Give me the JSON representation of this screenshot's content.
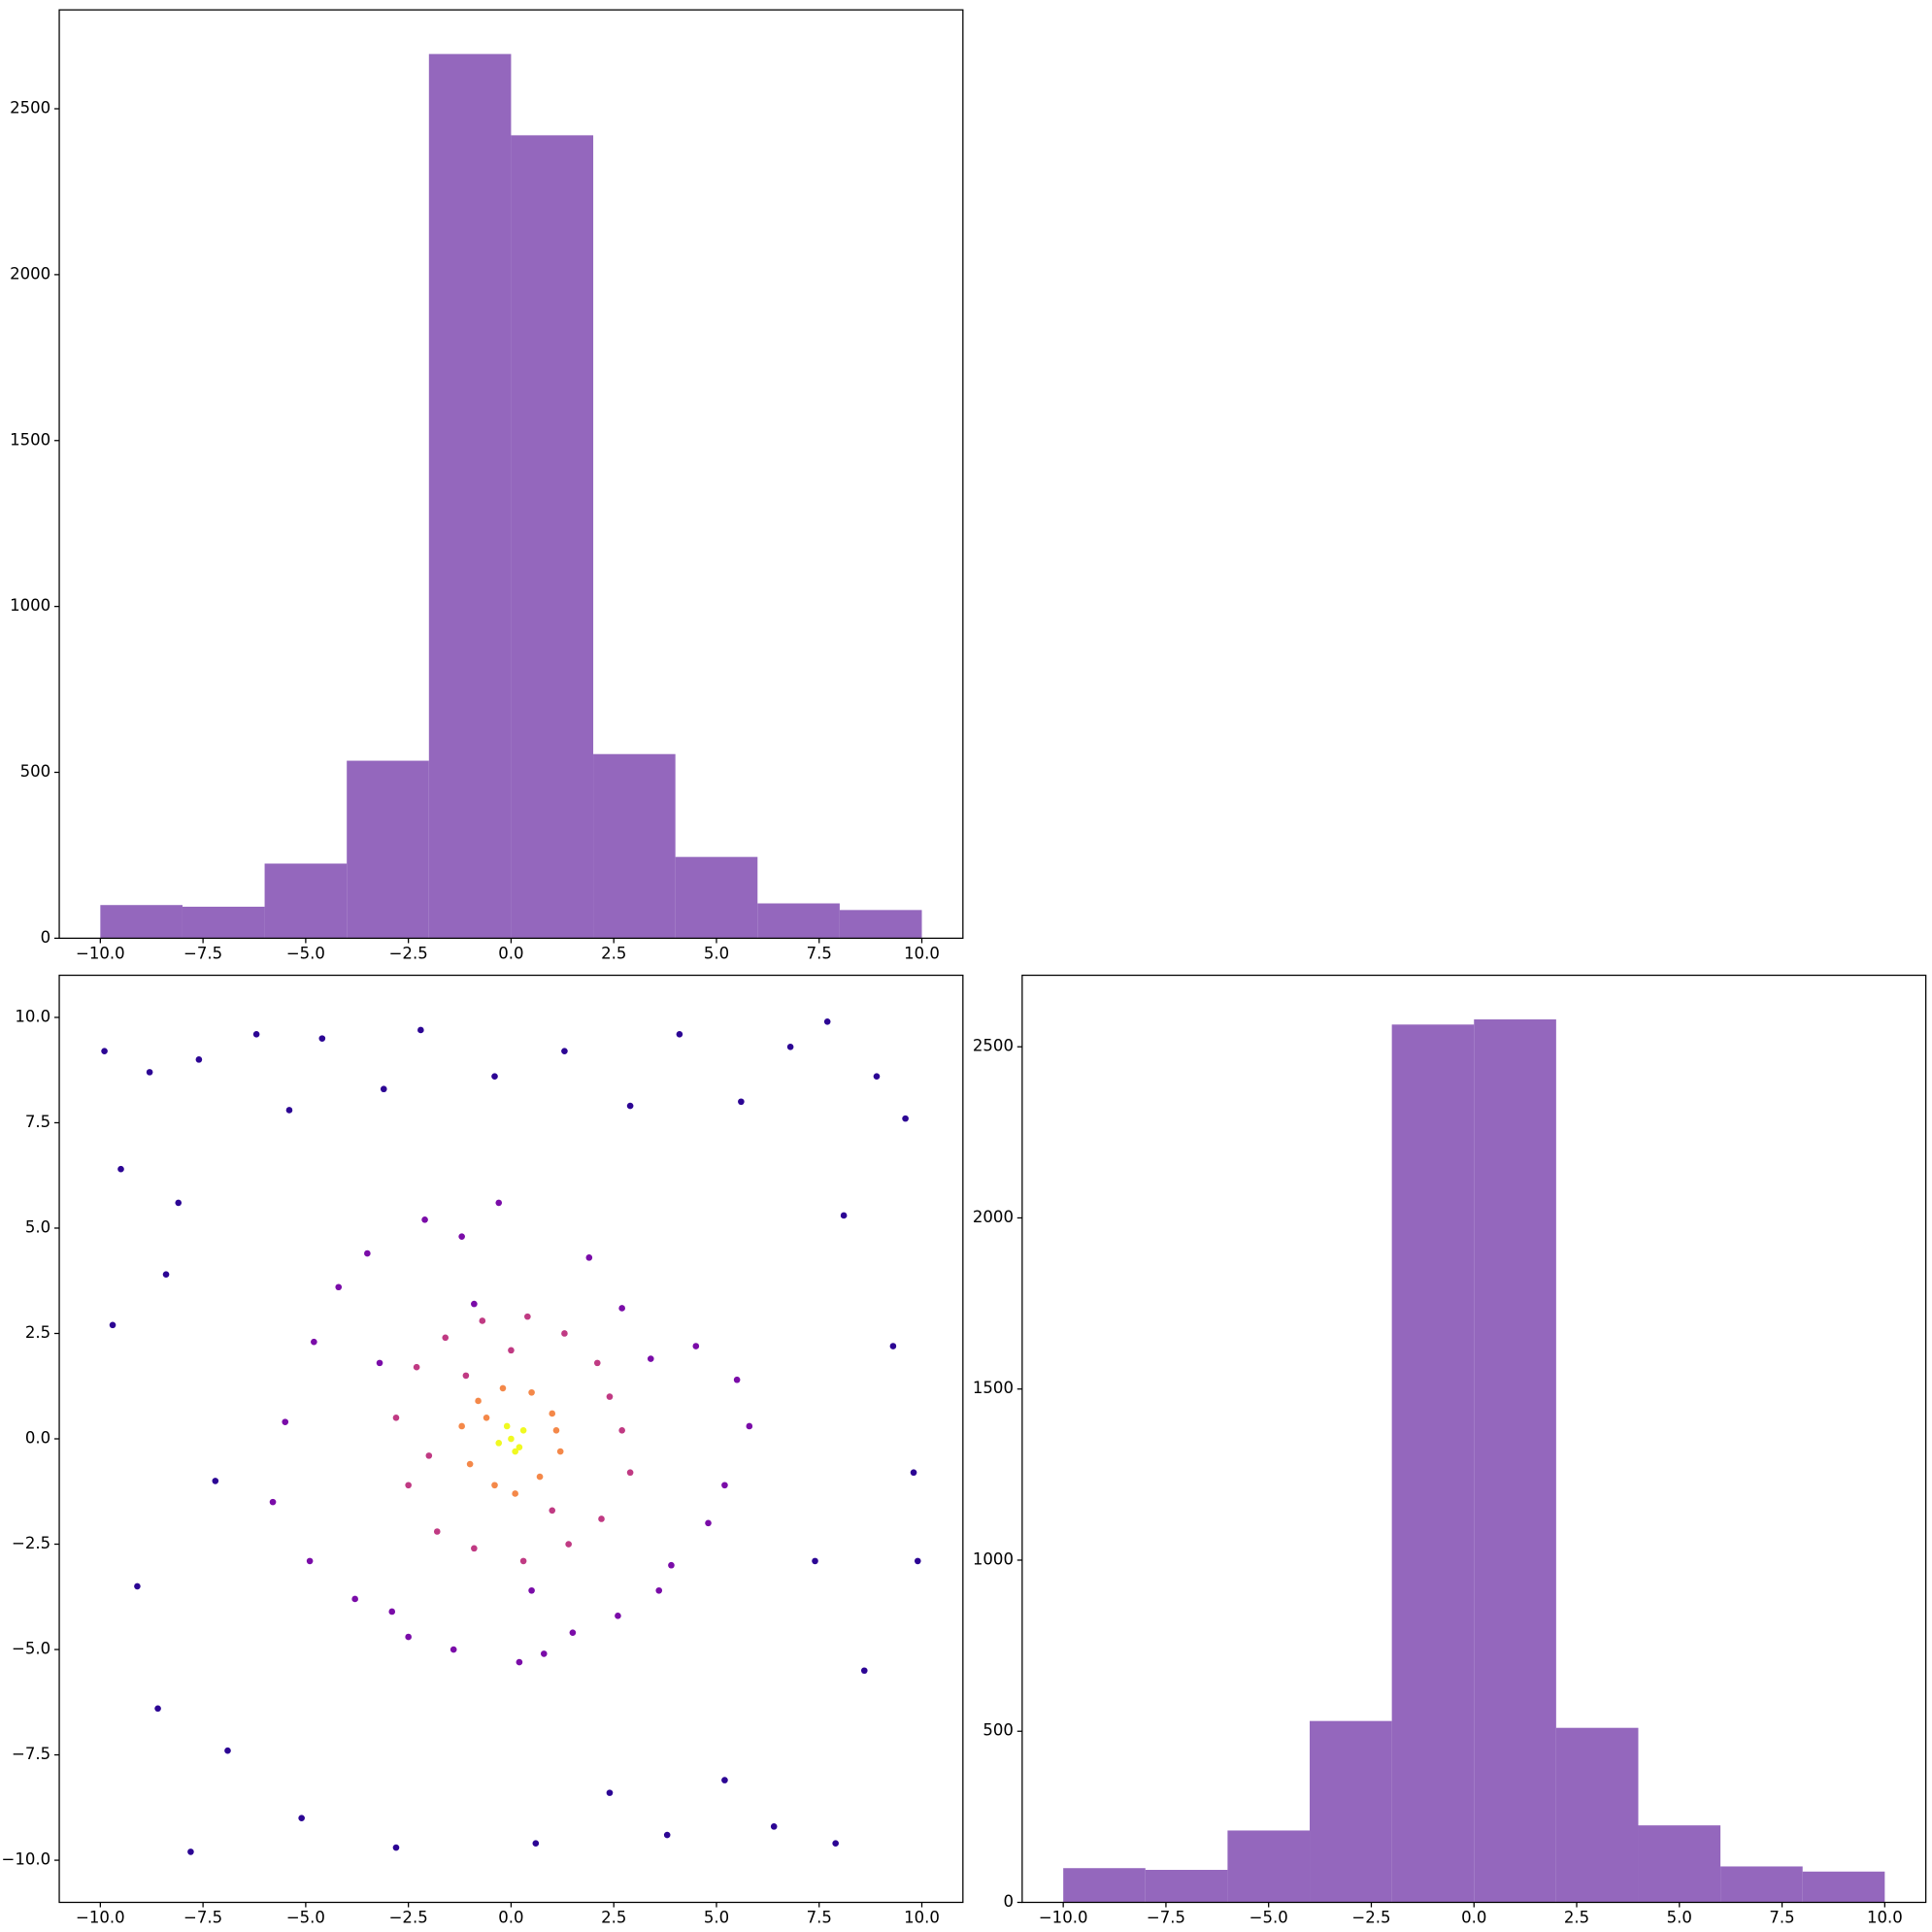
{
  "chart_data": [
    {
      "type": "histogram",
      "color": "#9467bd",
      "bins": [
        -10,
        -8,
        -6,
        -4,
        -2,
        0,
        2,
        4,
        6,
        8,
        10
      ],
      "values": [
        100,
        95,
        225,
        535,
        2665,
        2420,
        555,
        245,
        105,
        85
      ],
      "xlim": [
        -11,
        11
      ],
      "ylim": [
        0,
        2798
      ],
      "xticks": [
        {
          "value": -10,
          "label": "−10.0"
        },
        {
          "value": -7.5,
          "label": "−7.5"
        },
        {
          "value": -5,
          "label": "−5.0"
        },
        {
          "value": -2.5,
          "label": "−2.5"
        },
        {
          "value": 0,
          "label": "0.0"
        },
        {
          "value": 2.5,
          "label": "2.5"
        },
        {
          "value": 5,
          "label": "5.0"
        },
        {
          "value": 7.5,
          "label": "7.5"
        },
        {
          "value": 10,
          "label": "10.0"
        }
      ],
      "yticks": [
        0,
        500,
        1000,
        1500,
        2000,
        2500
      ]
    },
    {
      "type": "scatter",
      "series": [
        {
          "color": "#2c0594",
          "x": [
            -9.9,
            -9.5,
            -8.8,
            -8.1,
            -7.6,
            -6.2,
            -5.4,
            -4.6,
            -3.1,
            -2.2,
            -0.4,
            1.3,
            2.9,
            4.1,
            5.6,
            6.8,
            7.7,
            8.9,
            9.6,
            9.8,
            -9.7,
            -8.4,
            -7.2,
            -9.1,
            -8.6,
            8.1,
            9.3,
            7.4,
            8.6,
            9.9,
            -6.9,
            -5.1,
            -2.8,
            0.6,
            2.4,
            3.8,
            5.2,
            6.4,
            7.9,
            -7.8
          ],
          "values": [
            9.2,
            6.4,
            8.7,
            5.6,
            9.0,
            9.6,
            7.8,
            9.5,
            8.3,
            9.7,
            8.6,
            9.2,
            7.9,
            9.6,
            8.0,
            9.3,
            9.9,
            8.6,
            7.6,
            -0.8,
            2.7,
            3.9,
            -1.0,
            -3.5,
            -6.4,
            5.3,
            2.2,
            -2.9,
            -5.5,
            -2.9,
            -7.4,
            -9.0,
            -9.7,
            -9.6,
            -8.4,
            -9.4,
            -8.1,
            -9.2,
            -9.6,
            -9.8
          ]
        },
        {
          "color": "#7a0ca8",
          "x": [
            -5.5,
            -4.8,
            -4.2,
            -3.5,
            -2.9,
            -2.1,
            -1.2,
            -0.3,
            0.8,
            1.9,
            2.7,
            3.6,
            4.5,
            5.2,
            5.8,
            -5.8,
            -4.9,
            -3.8,
            -2.5,
            -1.4,
            0.2,
            1.5,
            2.6,
            3.9,
            4.8,
            5.5,
            -3.2,
            3.4,
            -0.9,
            0.5
          ],
          "values": [
            0.4,
            2.3,
            3.6,
            4.4,
            -4.1,
            5.2,
            4.8,
            5.6,
            -5.1,
            4.3,
            3.1,
            -3.6,
            2.2,
            -1.1,
            0.3,
            -1.5,
            -2.9,
            -3.8,
            -4.7,
            -5.0,
            -5.3,
            -4.6,
            -4.2,
            -3.0,
            -2.0,
            1.4,
            1.8,
            1.9,
            3.2,
            -3.6
          ]
        },
        {
          "color": "#c03a83",
          "x": [
            -2.8,
            -2.3,
            -1.6,
            -0.7,
            0.4,
            1.3,
            2.1,
            2.7,
            -2.5,
            -1.8,
            -0.9,
            0.3,
            1.4,
            2.2,
            2.9,
            -1.1,
            1.0,
            -2.0,
            2.4,
            0.0
          ],
          "values": [
            0.5,
            1.7,
            2.4,
            2.8,
            2.9,
            2.5,
            1.8,
            0.2,
            -1.1,
            -2.2,
            -2.6,
            -2.9,
            -2.5,
            -1.9,
            -0.8,
            1.5,
            -1.7,
            -0.4,
            1.0,
            2.1
          ]
        },
        {
          "color": "#f48849",
          "x": [
            -1.2,
            -0.8,
            -0.2,
            0.5,
            1.0,
            1.2,
            0.7,
            -0.4,
            -1.0,
            0.1,
            1.1,
            -0.6
          ],
          "values": [
            0.3,
            0.9,
            1.2,
            1.1,
            0.6,
            -0.3,
            -0.9,
            -1.1,
            -0.6,
            -1.3,
            0.2,
            0.5
          ]
        },
        {
          "color": "#f0f921",
          "x": [
            0,
            0.3,
            -0.3,
            0.1,
            -0.1,
            0.2
          ],
          "values": [
            0,
            0.2,
            -0.1,
            -0.3,
            0.3,
            -0.2
          ]
        }
      ],
      "xlim": [
        -11,
        11
      ],
      "ylim": [
        -11,
        11
      ],
      "xticks": [
        {
          "value": -10,
          "label": "−10.0"
        },
        {
          "value": -7.5,
          "label": "−7.5"
        },
        {
          "value": -5,
          "label": "−5.0"
        },
        {
          "value": -2.5,
          "label": "−2.5"
        },
        {
          "value": 0,
          "label": "0.0"
        },
        {
          "value": 2.5,
          "label": "2.5"
        },
        {
          "value": 5,
          "label": "5.0"
        },
        {
          "value": 7.5,
          "label": "7.5"
        },
        {
          "value": 10,
          "label": "10.0"
        }
      ],
      "yticks": [
        {
          "value": -10,
          "label": "−10.0"
        },
        {
          "value": -7.5,
          "label": "−7.5"
        },
        {
          "value": -5,
          "label": "−5.0"
        },
        {
          "value": -2.5,
          "label": "−2.5"
        },
        {
          "value": 0,
          "label": "0.0"
        },
        {
          "value": 2.5,
          "label": "2.5"
        },
        {
          "value": 5,
          "label": "5.0"
        },
        {
          "value": 7.5,
          "label": "7.5"
        },
        {
          "value": 10,
          "label": "10.0"
        }
      ]
    },
    {
      "type": "histogram",
      "color": "#9467bd",
      "bins": [
        -10,
        -8,
        -6,
        -4,
        -2,
        0,
        2,
        4,
        6,
        8,
        10
      ],
      "values": [
        100,
        95,
        210,
        530,
        2565,
        2580,
        510,
        225,
        105,
        90
      ],
      "xlim": [
        -11,
        11
      ],
      "ylim": [
        0,
        2709
      ],
      "xticks": [
        {
          "value": -10,
          "label": "−10.0"
        },
        {
          "value": -7.5,
          "label": "−7.5"
        },
        {
          "value": -5,
          "label": "−5.0"
        },
        {
          "value": -2.5,
          "label": "−2.5"
        },
        {
          "value": 0,
          "label": "0.0"
        },
        {
          "value": 2.5,
          "label": "2.5"
        },
        {
          "value": 5,
          "label": "5.0"
        },
        {
          "value": 7.5,
          "label": "7.5"
        },
        {
          "value": 10,
          "label": "10.0"
        }
      ],
      "yticks": [
        0,
        500,
        1000,
        1500,
        2000,
        2500
      ]
    }
  ]
}
